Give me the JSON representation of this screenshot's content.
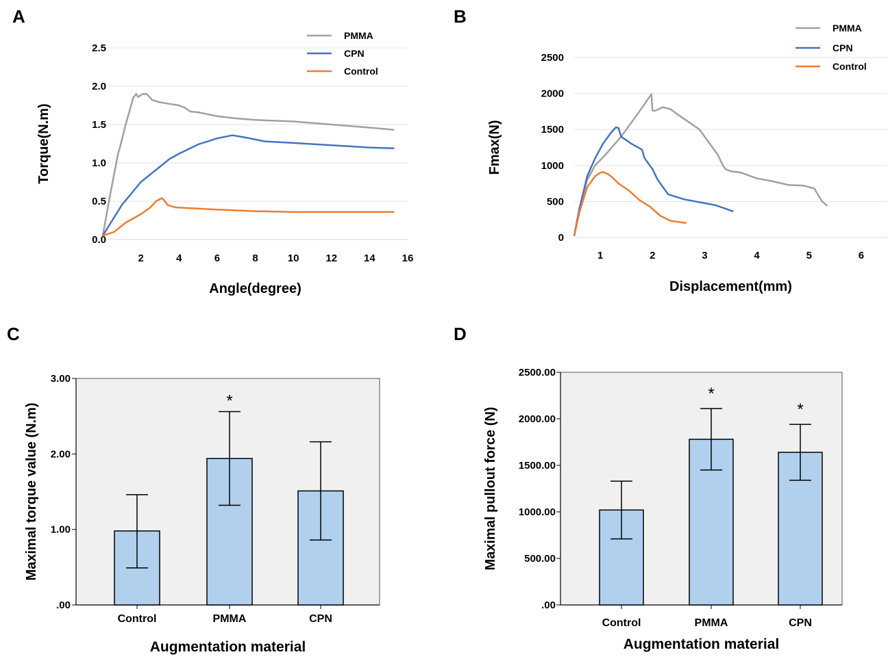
{
  "chart_data": [
    {
      "id": "A",
      "panel_label": "A",
      "type": "line",
      "xlabel": "Angle(degree)",
      "ylabel": "Torque(N.m)",
      "xlim": [
        0,
        16
      ],
      "ylim": [
        0,
        2.5
      ],
      "x_ticks": [
        "2",
        "4",
        "6",
        "8",
        "10",
        "12",
        "14",
        "16"
      ],
      "y_ticks": [
        "0.0",
        "0.5",
        "1.0",
        "1.5",
        "2.0",
        "2.5"
      ],
      "grid": true,
      "legend": "top-right",
      "series": [
        {
          "name": "PMMA",
          "color": "#a0a0a0",
          "x": [
            0,
            0.4,
            0.8,
            0.9,
            1.2,
            1.6,
            1.75,
            1.85,
            2.1,
            2.3,
            2.6,
            3.0,
            3.5,
            4.0,
            4.3,
            4.6,
            5.0,
            6.0,
            7.0,
            8.0,
            9.0,
            10.0,
            11.0,
            12.0,
            13.0,
            14.0,
            15.3
          ],
          "y": [
            0.05,
            0.6,
            1.12,
            1.2,
            1.5,
            1.85,
            1.9,
            1.86,
            1.9,
            1.9,
            1.82,
            1.79,
            1.77,
            1.75,
            1.72,
            1.67,
            1.66,
            1.61,
            1.58,
            1.56,
            1.55,
            1.54,
            1.52,
            1.5,
            1.48,
            1.46,
            1.43
          ]
        },
        {
          "name": "CPN",
          "color": "#4472c4",
          "x": [
            0,
            1,
            2,
            3,
            3.5,
            4,
            5,
            6,
            6.8,
            7.5,
            8.5,
            10,
            12,
            14,
            15.3
          ],
          "y": [
            0.05,
            0.45,
            0.75,
            0.95,
            1.05,
            1.12,
            1.24,
            1.32,
            1.36,
            1.33,
            1.28,
            1.26,
            1.23,
            1.2,
            1.19
          ]
        },
        {
          "name": "Control",
          "color": "#ed7d31",
          "x": [
            0,
            0.6,
            1.2,
            2,
            2.5,
            2.8,
            3.1,
            3.2,
            3.4,
            3.8,
            4.5,
            6,
            8,
            10,
            12,
            15.3
          ],
          "y": [
            0.05,
            0.1,
            0.22,
            0.33,
            0.42,
            0.5,
            0.54,
            0.52,
            0.45,
            0.42,
            0.41,
            0.39,
            0.37,
            0.36,
            0.36,
            0.36
          ]
        }
      ]
    },
    {
      "id": "B",
      "panel_label": "B",
      "type": "line",
      "xlabel": "Displacement(mm)",
      "ylabel": "Fmax(N)",
      "xlim": [
        0.5,
        6.5
      ],
      "ylim": [
        0,
        2500
      ],
      "x_ticks": [
        "1",
        "2",
        "3",
        "4",
        "5",
        "6"
      ],
      "y_ticks": [
        "0",
        "500",
        "1000",
        "1500",
        "2000",
        "2500"
      ],
      "grid": true,
      "legend": "top-right",
      "series": [
        {
          "name": "PMMA",
          "color": "#a0a0a0",
          "x": [
            0.5,
            0.6,
            0.75,
            0.9,
            1.1,
            1.4,
            1.7,
            1.98,
            2.0,
            2.05,
            2.2,
            2.35,
            2.5,
            2.7,
            2.9,
            3.1,
            3.25,
            3.35,
            3.4,
            3.5,
            3.7,
            4.0,
            4.3,
            4.6,
            4.9,
            5.1,
            5.25,
            5.35
          ],
          "y": [
            20,
            400,
            800,
            1000,
            1150,
            1400,
            1700,
            1990,
            1760,
            1760,
            1810,
            1780,
            1700,
            1600,
            1500,
            1300,
            1150,
            1000,
            950,
            920,
            900,
            820,
            780,
            730,
            720,
            680,
            500,
            440
          ]
        },
        {
          "name": "CPN",
          "color": "#4472c4",
          "x": [
            0.5,
            0.6,
            0.75,
            0.9,
            1.05,
            1.2,
            1.3,
            1.35,
            1.4,
            1.6,
            1.8,
            1.85,
            2.0,
            2.1,
            2.3,
            2.6,
            2.9,
            3.2,
            3.4,
            3.55
          ],
          "y": [
            20,
            400,
            850,
            1100,
            1300,
            1450,
            1530,
            1520,
            1400,
            1300,
            1220,
            1100,
            950,
            800,
            600,
            530,
            490,
            450,
            400,
            360
          ]
        },
        {
          "name": "Control",
          "color": "#ed7d31",
          "x": [
            0.5,
            0.6,
            0.75,
            0.9,
            1.0,
            1.05,
            1.15,
            1.25,
            1.35,
            1.55,
            1.75,
            1.95,
            2.15,
            2.35,
            2.65
          ],
          "y": [
            20,
            350,
            700,
            850,
            900,
            910,
            880,
            820,
            750,
            650,
            520,
            430,
            300,
            230,
            200
          ]
        }
      ]
    },
    {
      "id": "C",
      "panel_label": "C",
      "type": "bar",
      "xlabel": "Augmentation material",
      "ylabel": "Maximal torque value (N.m)",
      "ylim": [
        0,
        3.0
      ],
      "y_ticks": [
        ".00",
        "1.00",
        "2.00",
        "3.00"
      ],
      "categories": [
        "Control",
        "PMMA",
        "CPN"
      ],
      "values": [
        0.98,
        1.94,
        1.51
      ],
      "error_low": [
        0.49,
        1.32,
        0.86
      ],
      "error_high": [
        1.46,
        2.56,
        2.16
      ],
      "significance": [
        "",
        "*",
        ""
      ],
      "bar_color": "#b0d0ee",
      "background": "#f0f0f0"
    },
    {
      "id": "D",
      "panel_label": "D",
      "type": "bar",
      "xlabel": "Augmentation material",
      "ylabel": "Maximal pullout force (N)",
      "ylim": [
        0,
        2500
      ],
      "y_ticks": [
        ".00",
        "500.00",
        "1000.00",
        "1500.00",
        "2000.00",
        "2500.00"
      ],
      "categories": [
        "Control",
        "PMMA",
        "CPN"
      ],
      "values": [
        1020,
        1780,
        1640
      ],
      "error_low": [
        710,
        1450,
        1340
      ],
      "error_high": [
        1330,
        2110,
        1940
      ],
      "significance": [
        "",
        "*",
        "*"
      ],
      "bar_color": "#b0d0ee",
      "background": "#f0f0f0"
    }
  ]
}
